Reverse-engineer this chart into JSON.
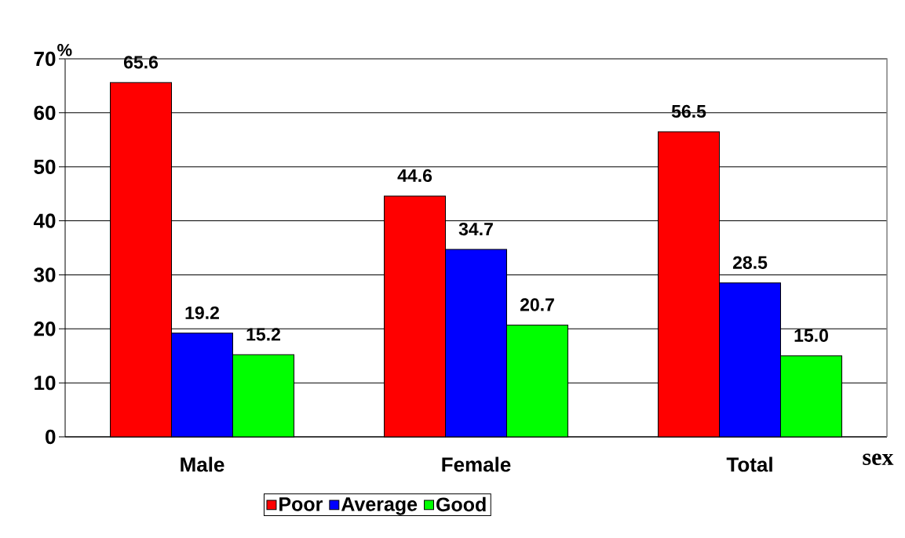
{
  "chart_data": {
    "type": "bar",
    "ylabel": "%",
    "xlabel": "sex",
    "categories": [
      "Male",
      "Female",
      "Total"
    ],
    "series": [
      {
        "name": "Poor",
        "color": "#ff0000",
        "values": [
          65.6,
          44.6,
          56.5
        ],
        "value_labels": [
          "65.6",
          "44.6",
          "56.5"
        ]
      },
      {
        "name": "Average",
        "color": "#0000ff",
        "values": [
          19.2,
          34.7,
          28.5
        ],
        "value_labels": [
          "19.2",
          "34.7",
          "28.5"
        ]
      },
      {
        "name": "Good",
        "color": "#00ff00",
        "values": [
          15.2,
          20.7,
          15.0
        ],
        "value_labels": [
          "15.2",
          "20.7",
          "15.0"
        ]
      }
    ],
    "ylim": [
      0,
      70
    ],
    "yticks": [
      0,
      10,
      20,
      30,
      40,
      50,
      60,
      70
    ],
    "grid": "y",
    "legend": "bottom"
  }
}
